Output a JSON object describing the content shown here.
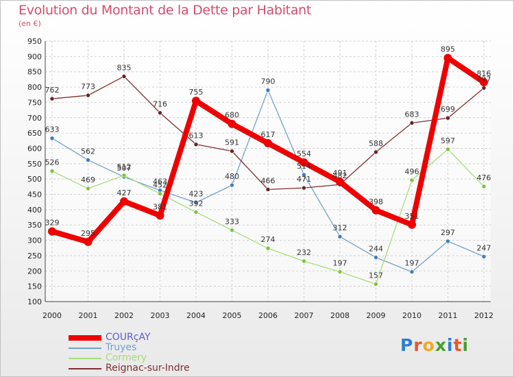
{
  "title": "Evolution du Montant de la Dette par Habitant",
  "subtitle": "(en €)",
  "brand": {
    "text": "Proxiti",
    "colors": [
      "#2c7fd1",
      "#e8562a",
      "#f5a623",
      "#4a9e2f",
      "#2c7fd1",
      "#e8562a",
      "#4a9e2f"
    ]
  },
  "chart_data": {
    "type": "line",
    "title": "Evolution du Montant de la Dette par Habitant",
    "subtitle": "(en €)",
    "xlabel": "",
    "ylabel": "",
    "ylim": [
      100,
      950
    ],
    "yticks": [
      100,
      150,
      200,
      250,
      300,
      350,
      400,
      450,
      500,
      550,
      600,
      650,
      700,
      750,
      800,
      850,
      900,
      950
    ],
    "grid": true,
    "legend_position": "bottom-left",
    "categories": [
      "2000",
      "2001",
      "2002",
      "2003",
      "2004",
      "2005",
      "2006",
      "2007",
      "2008",
      "2009",
      "2010",
      "2011",
      "2012"
    ],
    "series": [
      {
        "name": "COURçAY",
        "color": "#ee0000",
        "point_color": "#ee0000",
        "bold": true,
        "values": [
          329,
          295,
          427,
          381,
          755,
          680,
          617,
          554,
          491,
          398,
          351,
          895,
          816
        ],
        "labels": [
          "329",
          "295",
          "427",
          "381",
          "755",
          "680",
          "617",
          "554",
          "491",
          "398",
          "351",
          "895",
          "816"
        ]
      },
      {
        "name": "Truyes",
        "color": "#6fa0cf",
        "point_color": "#3a7cc0",
        "bold": false,
        "values": [
          633,
          562,
          507,
          463,
          423,
          480,
          790,
          514,
          312,
          244,
          197,
          297,
          247
        ],
        "labels": [
          "633",
          "562",
          "507",
          "463",
          "423",
          "480",
          "790",
          "514",
          "312",
          "244",
          "197",
          "297",
          "247"
        ]
      },
      {
        "name": "Cormery",
        "color": "#a6dc7b",
        "point_color": "#7cc43a",
        "bold": false,
        "values": [
          526,
          469,
          512,
          452,
          392,
          333,
          274,
          232,
          197,
          157,
          496,
          597,
          476
        ],
        "labels": [
          "526",
          "469",
          "512",
          "452",
          "392",
          "333",
          "274",
          "232",
          "197",
          "157",
          "496",
          "597",
          "476"
        ]
      },
      {
        "name": "Reignac-sur-Indre",
        "color": "#7f2d2d",
        "point_color": "#6b1f1f",
        "bold": false,
        "values": [
          762,
          773,
          835,
          716,
          613,
          591,
          466,
          471,
          482,
          588,
          683,
          699,
          797
        ],
        "labels": [
          "762",
          "773",
          "835",
          "716",
          "613",
          "591",
          "466",
          "471",
          "482",
          "588",
          "683",
          "699",
          "797"
        ]
      }
    ]
  }
}
